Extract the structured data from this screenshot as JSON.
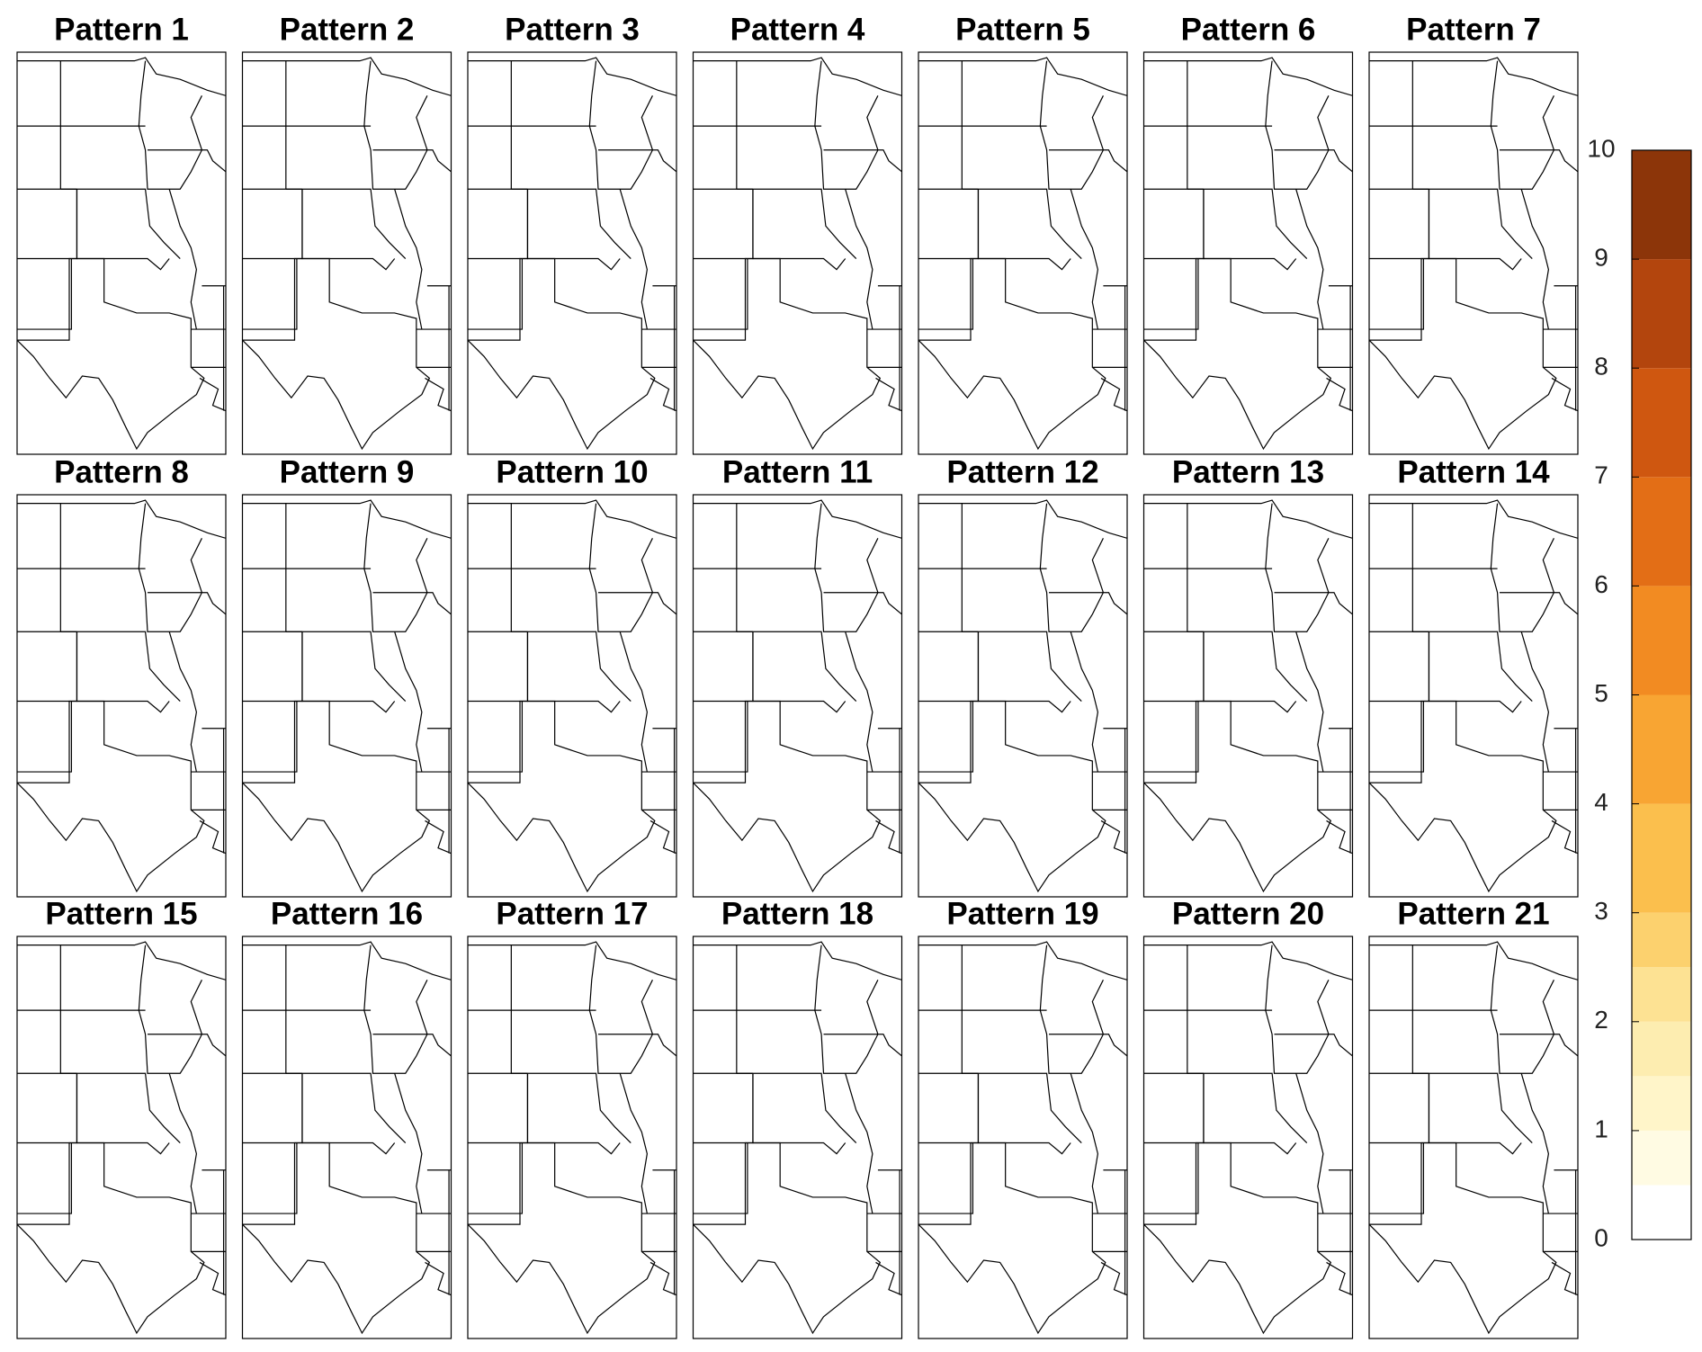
{
  "panels": {
    "titles": [
      "Pattern 1",
      "Pattern 2",
      "Pattern 3",
      "Pattern 4",
      "Pattern 5",
      "Pattern 6",
      "Pattern 7",
      "Pattern 8",
      "Pattern 9",
      "Pattern 10",
      "Pattern 11",
      "Pattern 12",
      "Pattern 13",
      "Pattern 14",
      "Pattern 15",
      "Pattern 16",
      "Pattern 17",
      "Pattern 18",
      "Pattern 19",
      "Pattern 20",
      "Pattern 21"
    ]
  },
  "colorbar": {
    "lim": [
      0,
      10
    ],
    "ticks": [
      0,
      1,
      2,
      3,
      4,
      5,
      6,
      7,
      8,
      9,
      10
    ],
    "bounds": [
      0,
      0.5,
      1,
      1.5,
      2,
      2.5,
      3,
      4,
      5,
      6,
      7,
      8,
      9,
      10
    ],
    "colors": [
      "#ffffff",
      "#fffbe3",
      "#fff5c9",
      "#fdedb0",
      "#fde293",
      "#fcd16e",
      "#fbbf4d",
      "#f8a533",
      "#f28b22",
      "#e36e16",
      "#cf5710",
      "#b3450d",
      "#8c3509",
      "#662608"
    ]
  }
}
